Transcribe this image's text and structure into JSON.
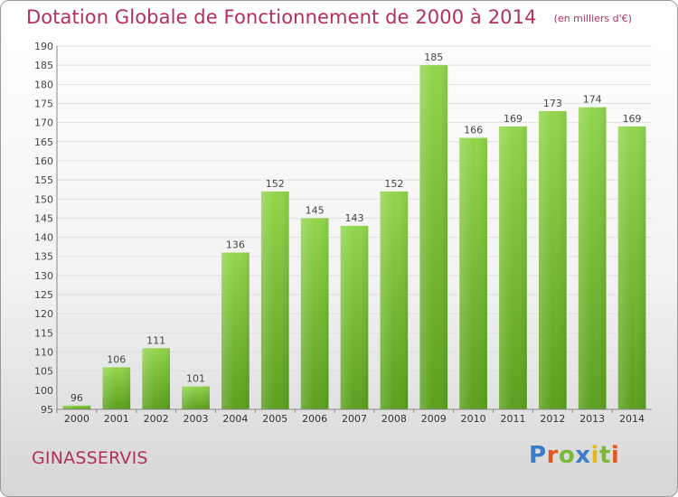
{
  "header": {
    "title": "Dotation Globale de Fonctionnement de 2000 à 2014",
    "subtitle": "(en milliers d'€)"
  },
  "footer": {
    "commune": "GINASSERVIS",
    "brand": "Proxiti",
    "brand_colors": [
      "#3a7dc9",
      "#e05a27",
      "#7ab83a",
      "#3a7dc9",
      "#e5b91c",
      "#7ab83a",
      "#e05a27"
    ]
  },
  "colors": {
    "title": "#b22f5f",
    "bar_light": "#8fd24a",
    "bar_dark": "#5a9e1c",
    "grid": "#e0e0e0",
    "axis": "#888888"
  },
  "chart_data": {
    "type": "bar",
    "title": "Dotation Globale de Fonctionnement de 2000 à 2014",
    "subtitle": "(en milliers d'€)",
    "xlabel": "",
    "ylabel": "",
    "categories": [
      "2000",
      "2001",
      "2002",
      "2003",
      "2004",
      "2005",
      "2006",
      "2007",
      "2008",
      "2009",
      "2010",
      "2011",
      "2012",
      "2013",
      "2014"
    ],
    "values": [
      96,
      106,
      111,
      101,
      136,
      152,
      145,
      143,
      152,
      185,
      166,
      169,
      173,
      174,
      169
    ],
    "ylim": [
      95,
      190
    ],
    "ytick_step": 5,
    "grid": true,
    "legend": "none"
  }
}
